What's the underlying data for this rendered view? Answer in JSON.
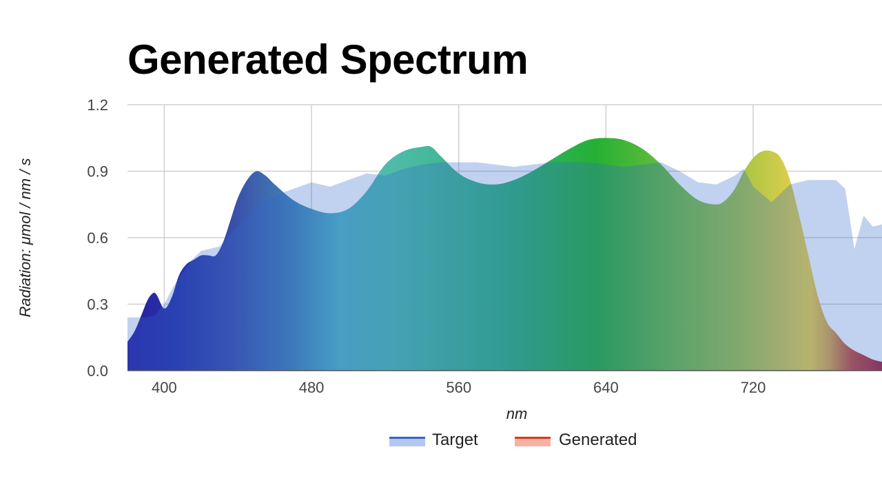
{
  "chart_data": {
    "type": "area",
    "title": "Generated Spectrum",
    "xlabel": "nm",
    "ylabel": "Radiation: μmol / nm / s",
    "xlim": [
      380,
      790
    ],
    "ylim": [
      0,
      1.2
    ],
    "x_ticks": [
      400,
      480,
      560,
      640,
      720
    ],
    "y_ticks": [
      "0.0",
      "0.3",
      "0.6",
      "0.9",
      "1.2"
    ],
    "grid": true,
    "legend": {
      "position": "bottom"
    },
    "colors": {
      "target": "#3366cc",
      "generated": "#dc3912",
      "target_fill": "#b7c7ec",
      "generated_fill": "#f4b3a4"
    },
    "series": [
      {
        "name": "Target",
        "x": [
          380,
          385,
          390,
          395,
          400,
          405,
          410,
          415,
          420,
          430,
          440,
          450,
          460,
          470,
          480,
          490,
          500,
          510,
          520,
          530,
          540,
          550,
          560,
          570,
          580,
          590,
          600,
          610,
          620,
          630,
          640,
          650,
          660,
          670,
          680,
          690,
          700,
          705,
          710,
          715,
          720,
          730,
          740,
          750,
          760,
          765,
          770,
          775,
          780,
          785,
          790
        ],
        "y": [
          0.24,
          0.24,
          0.24,
          0.25,
          0.3,
          0.38,
          0.44,
          0.5,
          0.54,
          0.56,
          0.65,
          0.74,
          0.79,
          0.82,
          0.85,
          0.83,
          0.86,
          0.89,
          0.88,
          0.91,
          0.93,
          0.94,
          0.94,
          0.94,
          0.93,
          0.92,
          0.93,
          0.94,
          0.94,
          0.94,
          0.93,
          0.92,
          0.93,
          0.94,
          0.9,
          0.85,
          0.84,
          0.86,
          0.88,
          0.91,
          0.83,
          0.76,
          0.84,
          0.86,
          0.86,
          0.86,
          0.82,
          0.55,
          0.7,
          0.65,
          0.66
        ]
      },
      {
        "name": "Generated",
        "x": [
          380,
          384,
          388,
          391,
          394,
          396,
          400,
          404,
          408,
          412,
          416,
          420,
          424,
          428,
          432,
          436,
          440,
          445,
          450,
          455,
          460,
          470,
          480,
          490,
          500,
          510,
          520,
          530,
          540,
          545,
          550,
          560,
          570,
          580,
          590,
          600,
          610,
          620,
          630,
          640,
          650,
          660,
          670,
          680,
          690,
          700,
          705,
          710,
          715,
          720,
          725,
          730,
          735,
          740,
          745,
          750,
          755,
          760,
          765,
          770,
          775,
          780,
          785,
          790
        ],
        "y": [
          0.13,
          0.18,
          0.26,
          0.32,
          0.35,
          0.34,
          0.28,
          0.33,
          0.43,
          0.48,
          0.5,
          0.52,
          0.52,
          0.52,
          0.58,
          0.68,
          0.78,
          0.86,
          0.9,
          0.88,
          0.84,
          0.77,
          0.73,
          0.71,
          0.73,
          0.81,
          0.93,
          0.99,
          1.01,
          1.01,
          0.97,
          0.89,
          0.85,
          0.84,
          0.86,
          0.9,
          0.95,
          1.0,
          1.04,
          1.05,
          1.04,
          1.0,
          0.93,
          0.84,
          0.77,
          0.75,
          0.77,
          0.82,
          0.9,
          0.96,
          0.99,
          0.99,
          0.96,
          0.86,
          0.7,
          0.52,
          0.34,
          0.22,
          0.17,
          0.12,
          0.09,
          0.07,
          0.05,
          0.04
        ]
      }
    ]
  }
}
